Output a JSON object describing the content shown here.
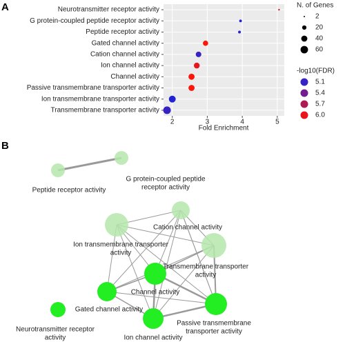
{
  "chart_data": {
    "type": "dot",
    "panel_label": "A",
    "x_label": "Fold Enrichment",
    "categories": [
      "Neurotransmitter receptor activity",
      "G protein-coupled peptide receptor activity",
      "Peptide receptor activity",
      "Gated channel activity",
      "Cation channel activity",
      "Ion channel activity",
      "Channel activity",
      "Passive transmembrane transporter activity",
      "Ion transmembrane transporter activity",
      "Transmembrane transporter activity"
    ],
    "x": [
      5.05,
      3.95,
      3.92,
      2.95,
      2.75,
      2.7,
      2.55,
      2.55,
      2.0,
      1.85
    ],
    "sizes": [
      3,
      8,
      8,
      30,
      33,
      36,
      40,
      40,
      50,
      62
    ],
    "colors": [
      5.9,
      5.0,
      5.0,
      6.1,
      5.1,
      6.0,
      6.1,
      6.1,
      5.0,
      5.1
    ],
    "xlim": [
      1.75,
      5.2
    ],
    "xticks": [
      2,
      3,
      4,
      5
    ],
    "grid": true,
    "color_low": "#2323d6",
    "color_high": "#e8161c",
    "colorlim": [
      5.0,
      6.0
    ],
    "size_legend": {
      "title": "N. of Genes",
      "values": [
        2,
        20,
        40,
        60
      ]
    },
    "color_legend": {
      "title": "-log10(FDR)",
      "values": [
        5.1,
        5.4,
        5.7,
        {
          "value": 6,
          "label": "6.0"
        }
      ]
    }
  },
  "network": {
    "panel_label": "B",
    "nodes": [
      {
        "label": [
          "G protein-coupled peptide",
          "receptor activity"
        ]
      },
      {
        "label": [
          "Peptide receptor activity"
        ]
      },
      {
        "label": [
          "Cation channel activity"
        ]
      },
      {
        "label": [
          "Ion transmembrane transporter",
          "activity"
        ]
      },
      {
        "label": [
          "Transmembrane transporter",
          "activity"
        ]
      },
      {
        "label": [
          "Channel activity"
        ]
      },
      {
        "label": [
          "Gated channel activity"
        ]
      },
      {
        "label": [
          "Passive transmembrane",
          "transporter activity"
        ]
      },
      {
        "label": [
          "Ion channel activity"
        ]
      },
      {
        "label": [
          "Neurotransmitter receptor",
          "activity"
        ]
      }
    ]
  }
}
